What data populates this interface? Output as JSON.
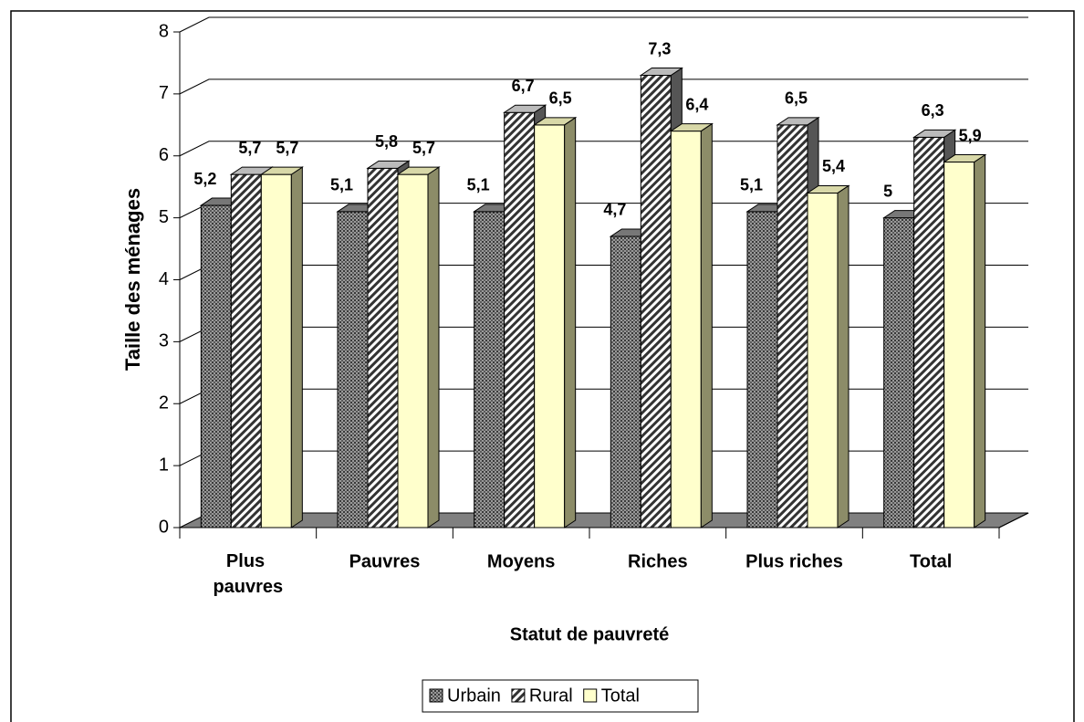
{
  "chart_data": {
    "type": "bar3d",
    "x_label": "Statut de pauvreté",
    "y_label": "Taille des ménages",
    "categories": [
      "Plus pauvres",
      "Pauvres",
      "Moyens",
      "Riches",
      "Plus riches",
      "Total"
    ],
    "series": [
      {
        "name": "Urbain",
        "color": "#808080",
        "pattern": "dots",
        "values": [
          5.2,
          5.1,
          5.1,
          4.7,
          5.1,
          5
        ],
        "value_labels": [
          "5,2",
          "5,1",
          "5,1",
          "4,7",
          "5,1",
          "5"
        ]
      },
      {
        "name": "Rural",
        "color": "#ffffff",
        "pattern": "hatch",
        "values": [
          5.7,
          5.8,
          6.7,
          7.3,
          6.5,
          6.3
        ],
        "value_labels": [
          "5,7",
          "5,8",
          "6,7",
          "7,3",
          "6,5",
          "6,3"
        ]
      },
      {
        "name": "Total",
        "color": "#ffffcc",
        "pattern": "solid",
        "values": [
          5.7,
          5.7,
          6.5,
          6.4,
          5.4,
          5.9
        ],
        "value_labels": [
          "5,7",
          "5,7",
          "6,5",
          "6,4",
          "5,4",
          "5,9"
        ]
      }
    ],
    "ylim": [
      0,
      8
    ],
    "yticks": [
      0,
      1,
      2,
      3,
      4,
      5,
      6,
      7,
      8
    ],
    "grid": true,
    "legend": "bottom"
  }
}
